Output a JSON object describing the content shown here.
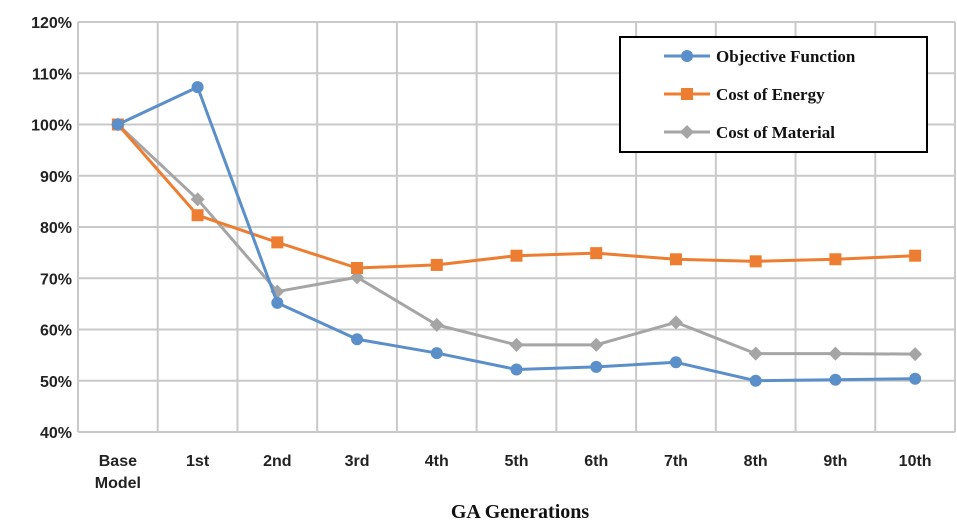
{
  "chart_data": {
    "type": "line",
    "title": "",
    "xlabel": "GA Generations",
    "ylabel": "",
    "categories": [
      [
        "Base",
        "Model"
      ],
      [
        "1st"
      ],
      [
        "2nd"
      ],
      [
        "3rd"
      ],
      [
        "4th"
      ],
      [
        "5th"
      ],
      [
        "6th"
      ],
      [
        "7th"
      ],
      [
        "8th"
      ],
      [
        "9th"
      ],
      [
        "10th"
      ]
    ],
    "ylim": [
      40,
      120
    ],
    "yticks": [
      40,
      50,
      60,
      70,
      80,
      90,
      100,
      110,
      120
    ],
    "ytick_labels": [
      "40%",
      "50%",
      "60%",
      "70%",
      "80%",
      "90%",
      "100%",
      "110%",
      "120%"
    ],
    "grid": true,
    "legend_position": "top-right",
    "series": [
      {
        "name": "Objective Function",
        "marker": "circle",
        "color": "#5B8FC9",
        "values": [
          100,
          107.3,
          65.2,
          58.1,
          55.4,
          52.2,
          52.7,
          53.6,
          50.0,
          50.2,
          50.4
        ]
      },
      {
        "name": "Cost of Energy",
        "marker": "square",
        "color": "#ED7D31",
        "values": [
          100,
          82.3,
          77.0,
          72.0,
          72.6,
          74.4,
          74.9,
          73.7,
          73.3,
          73.7,
          74.4
        ]
      },
      {
        "name": "Cost of Material",
        "marker": "diamond",
        "color": "#A5A5A5",
        "values": [
          100,
          85.4,
          67.4,
          70.2,
          60.9,
          57.0,
          57.0,
          61.4,
          55.3,
          55.3,
          55.2
        ]
      }
    ]
  }
}
